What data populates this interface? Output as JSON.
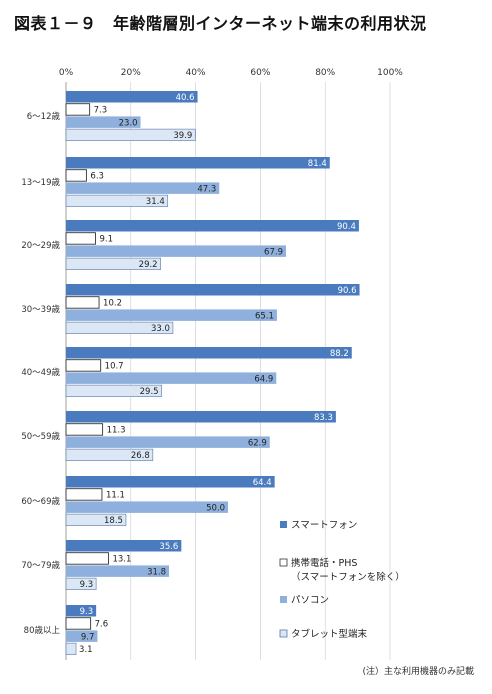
{
  "title": "図表１－９　年齢階層別インターネット端末の利用状況",
  "note": "(注）主な利用機器のみ記載",
  "chart_data": {
    "type": "bar",
    "orientation": "horizontal",
    "xlim": [
      0,
      100
    ],
    "x_ticks": [
      "0%",
      "20%",
      "40%",
      "60%",
      "80%",
      "100%"
    ],
    "grid": true,
    "legend_position": "right",
    "categories": [
      "6～12歳",
      "13～19歳",
      "20～29歳",
      "30～39歳",
      "40～49歳",
      "50～59歳",
      "60～69歳",
      "70～79歳",
      "80歳以上"
    ],
    "series": [
      {
        "name": "スマートフォン",
        "color": "#4a7bbf",
        "values": [
          40.6,
          81.4,
          90.4,
          90.6,
          88.2,
          83.3,
          64.4,
          35.6,
          9.3
        ]
      },
      {
        "name": "携帯電話・PHS\n（スマートフォンを除く）",
        "color": "#ffffff",
        "values": [
          7.3,
          6.3,
          9.1,
          10.2,
          10.7,
          11.3,
          11.1,
          13.1,
          7.6
        ]
      },
      {
        "name": "パソコン",
        "color": "#8fb0dc",
        "values": [
          23.0,
          47.3,
          67.9,
          65.1,
          64.9,
          62.9,
          50.0,
          31.8,
          9.7
        ]
      },
      {
        "name": "タブレット型端末",
        "color": "#dce7f5",
        "values": [
          39.9,
          31.4,
          29.2,
          33.0,
          29.5,
          26.8,
          18.5,
          9.3,
          3.1
        ]
      }
    ]
  }
}
